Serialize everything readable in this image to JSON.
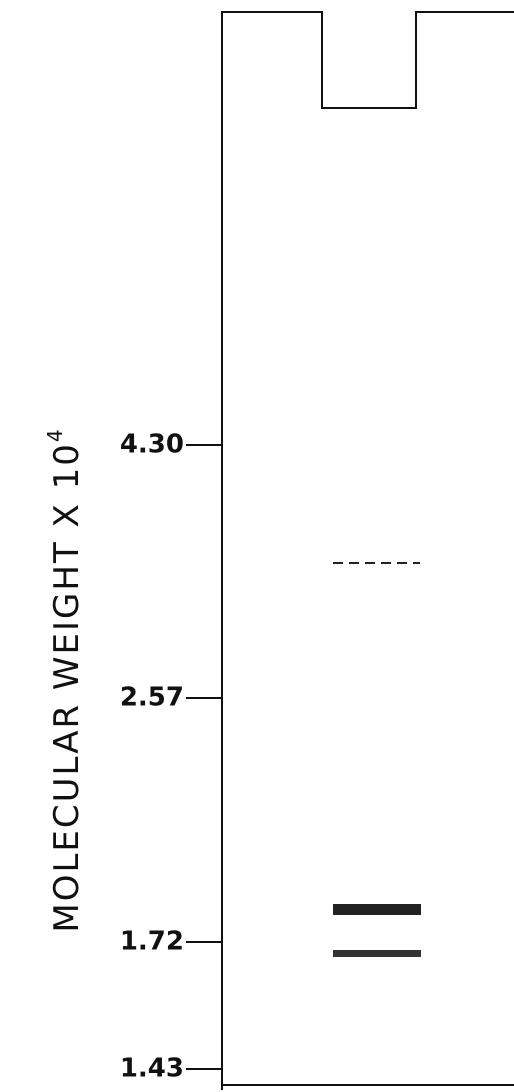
{
  "axis_label": {
    "text": "MOLECULAR  WEIGHT  X  10",
    "exponent": "4"
  },
  "markers": [
    "4.30",
    "2.57",
    "1.72",
    "1.43"
  ]
}
